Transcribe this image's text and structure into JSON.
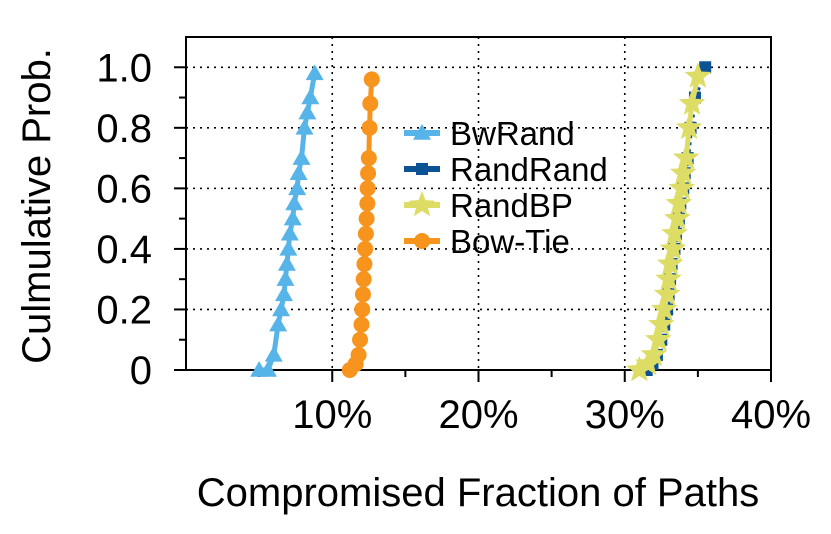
{
  "chart_data": {
    "type": "line",
    "title": "",
    "xlabel": "Compromised Fraction of Paths",
    "ylabel": "Culmulative Prob.",
    "xlim": [
      0,
      40
    ],
    "ylim": [
      0,
      1.1
    ],
    "x_ticks": [
      10,
      20,
      30,
      40
    ],
    "x_tick_labels": [
      "10%",
      "20%",
      "30%",
      "40%"
    ],
    "y_ticks": [
      0,
      0.2,
      0.4,
      0.6,
      0.8,
      1.0
    ],
    "y_tick_labels": [
      "0",
      "0.2",
      "0.4",
      "0.6",
      "0.8",
      "1.0"
    ],
    "grid": true,
    "legend_position": "center",
    "series": [
      {
        "name": "BwRand",
        "color": "#56b4e9",
        "marker": "triangle",
        "x": [
          5.0,
          5.6,
          6.0,
          6.3,
          6.5,
          6.7,
          6.8,
          6.9,
          7.0,
          7.1,
          7.3,
          7.4,
          7.6,
          7.7,
          7.9,
          8.1,
          8.3,
          8.5,
          8.8
        ],
        "y": [
          0.0,
          0.0,
          0.05,
          0.15,
          0.2,
          0.25,
          0.3,
          0.35,
          0.4,
          0.45,
          0.5,
          0.55,
          0.6,
          0.65,
          0.7,
          0.8,
          0.85,
          0.9,
          0.98
        ]
      },
      {
        "name": "RandRand",
        "color": "#0b5394",
        "marker": "square",
        "x": [
          31.5,
          31.9,
          32.2,
          32.5,
          32.7,
          32.9,
          33.0,
          33.1,
          33.2,
          33.4,
          33.5,
          33.7,
          33.8,
          34.0,
          34.1,
          34.3,
          34.5,
          34.8,
          35.5
        ],
        "y": [
          0.0,
          0.02,
          0.05,
          0.1,
          0.15,
          0.2,
          0.25,
          0.3,
          0.35,
          0.4,
          0.45,
          0.5,
          0.55,
          0.6,
          0.65,
          0.7,
          0.8,
          0.9,
          1.0
        ]
      },
      {
        "name": "RandBP",
        "color": "#dddd66",
        "marker": "star",
        "x": [
          31.0,
          31.6,
          32.0,
          32.3,
          32.5,
          32.7,
          32.9,
          33.0,
          33.1,
          33.3,
          33.4,
          33.6,
          33.7,
          33.9,
          34.0,
          34.2,
          34.4,
          34.6,
          35.0
        ],
        "y": [
          0.0,
          0.02,
          0.05,
          0.1,
          0.15,
          0.2,
          0.25,
          0.3,
          0.35,
          0.4,
          0.45,
          0.5,
          0.55,
          0.6,
          0.65,
          0.7,
          0.8,
          0.88,
          0.97
        ]
      },
      {
        "name": "Bow-Tie",
        "color": "#f7941d",
        "marker": "circle",
        "x": [
          11.2,
          11.6,
          11.8,
          11.9,
          12.0,
          12.05,
          12.1,
          12.15,
          12.2,
          12.25,
          12.3,
          12.35,
          12.4,
          12.42,
          12.45,
          12.5,
          12.55,
          12.6,
          12.7
        ],
        "y": [
          0.0,
          0.02,
          0.05,
          0.1,
          0.15,
          0.2,
          0.25,
          0.3,
          0.35,
          0.4,
          0.45,
          0.5,
          0.55,
          0.6,
          0.65,
          0.7,
          0.8,
          0.88,
          0.96
        ]
      }
    ]
  }
}
